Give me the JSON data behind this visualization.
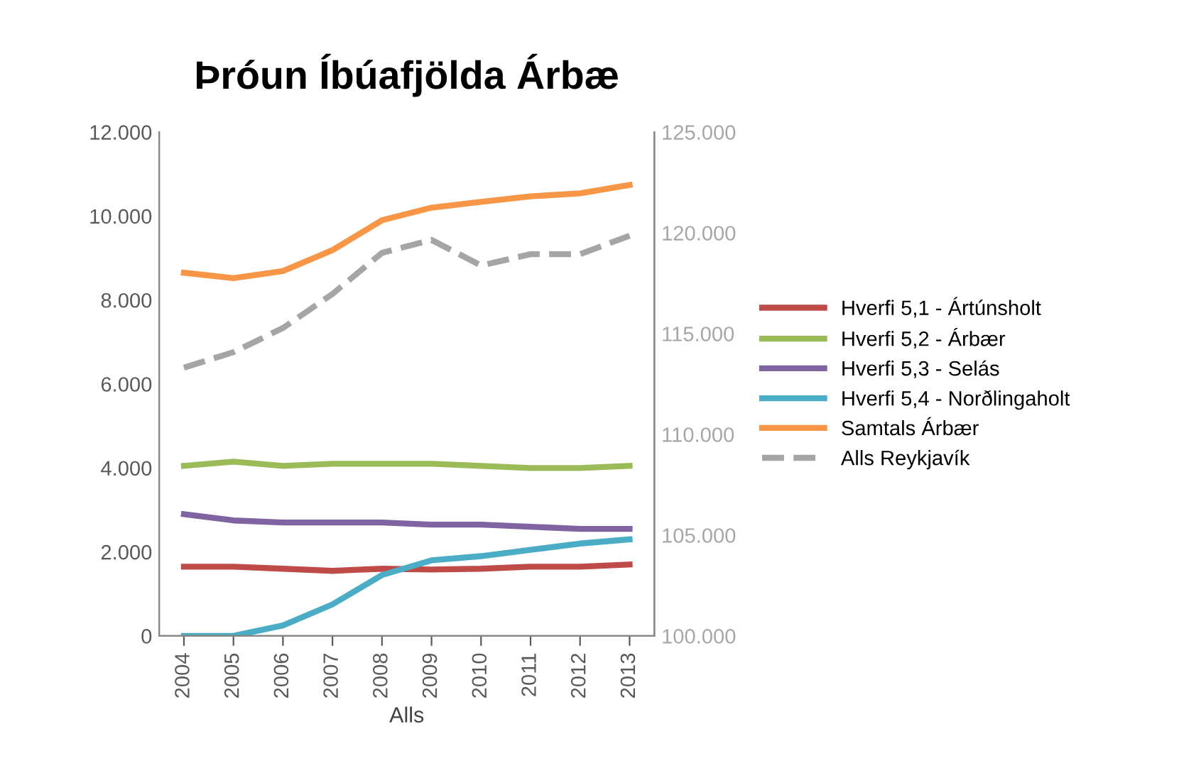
{
  "chart_data": {
    "type": "line",
    "title": "Þróun Íbúafjölda Árbæ",
    "xlabel": "Alls",
    "categories": [
      "2004",
      "2005",
      "2006",
      "2007",
      "2008",
      "2009",
      "2010",
      "2011",
      "2012",
      "2013"
    ],
    "series": [
      {
        "name": "Hverfi 5,1 - Ártúnsholt",
        "color": "#be4b48",
        "values": [
          1650,
          1650,
          1600,
          1550,
          1600,
          1580,
          1600,
          1650,
          1650,
          1700
        ]
      },
      {
        "name": "Hverfi 5,2 - Árbær",
        "color": "#9bbb59",
        "values": [
          4050,
          4150,
          4050,
          4100,
          4100,
          4100,
          4050,
          4000,
          4000,
          4050
        ]
      },
      {
        "name": "Hverfi 5,3 - Selás",
        "color": "#8064a2",
        "values": [
          2900,
          2750,
          2700,
          2700,
          2700,
          2650,
          2650,
          2600,
          2550,
          2550
        ]
      },
      {
        "name": "Hverfi 5,4 - Norðlingaholt",
        "color": "#4bacc6",
        "values": [
          0,
          0,
          250,
          750,
          1450,
          1800,
          1900,
          2050,
          2200,
          2300
        ]
      },
      {
        "name": "Samtals Árbær",
        "color": "#f79646",
        "values": [
          8650,
          8520,
          8690,
          9190,
          9900,
          10200,
          10340,
          10470,
          10540,
          10740
        ]
      },
      {
        "name": "Alls Reykjavík",
        "color": "#a5a5a5",
        "axis": "y2",
        "line_style": "dashed",
        "values": [
          113310,
          114080,
          115280,
          116970,
          119010,
          119650,
          118380,
          118940,
          118940,
          119860
        ]
      }
    ],
    "ylim": [
      0,
      12000
    ],
    "yticks": [
      {
        "value": 0,
        "label": "0"
      },
      {
        "value": 2000,
        "label": "2.000"
      },
      {
        "value": 4000,
        "label": "4.000"
      },
      {
        "value": 6000,
        "label": "6.000"
      },
      {
        "value": 8000,
        "label": "8.000"
      },
      {
        "value": 10000,
        "label": "10.000"
      },
      {
        "value": 12000,
        "label": "12.000"
      }
    ],
    "y2lim": [
      100000,
      125000
    ],
    "y2ticks": [
      {
        "value": 100000,
        "label": "100.000"
      },
      {
        "value": 105000,
        "label": "105.000"
      },
      {
        "value": 110000,
        "label": "110.000"
      },
      {
        "value": 115000,
        "label": "115.000"
      },
      {
        "value": 120000,
        "label": "120.000"
      },
      {
        "value": 125000,
        "label": "125.000"
      }
    ],
    "legend": "right",
    "grid": false,
    "line_style": "solid",
    "marker": "none"
  }
}
